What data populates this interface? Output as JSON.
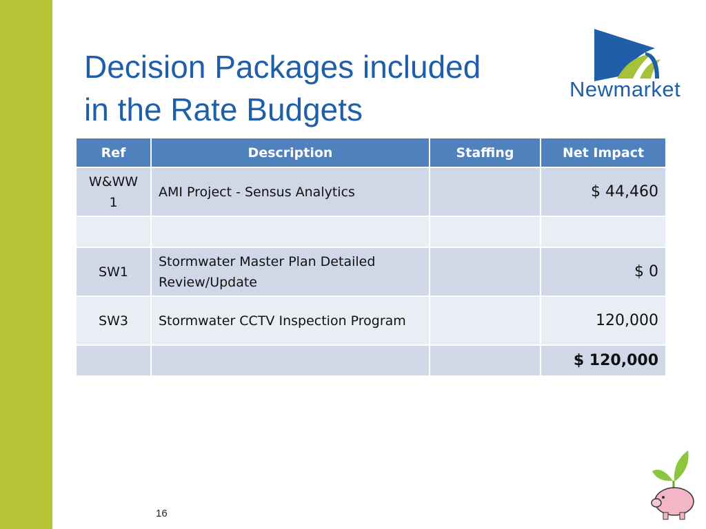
{
  "header": {
    "title_lines": [
      "Decision Packages included",
      "in the Rate Budgets"
    ],
    "logo": "Newmarket"
  },
  "table": {
    "columns": [
      "Ref",
      "Description",
      "Staffing",
      "Net Impact"
    ],
    "rows": [
      [
        "W&WW 1",
        "AMI Project - Sensus Analytics",
        null,
        "$ 44,460"
      ],
      [
        null,
        null,
        null,
        null
      ],
      [
        "SW1",
        "Stormwater Master Plan Detailed Review/Update",
        null,
        "$ 0"
      ],
      [
        "SW3",
        "Stormwater CCTV Inspection Program",
        null,
        "120,000"
      ],
      [
        null,
        null,
        null,
        "$ 120,000"
      ]
    ]
  },
  "footer": {
    "page_number": "16"
  }
}
